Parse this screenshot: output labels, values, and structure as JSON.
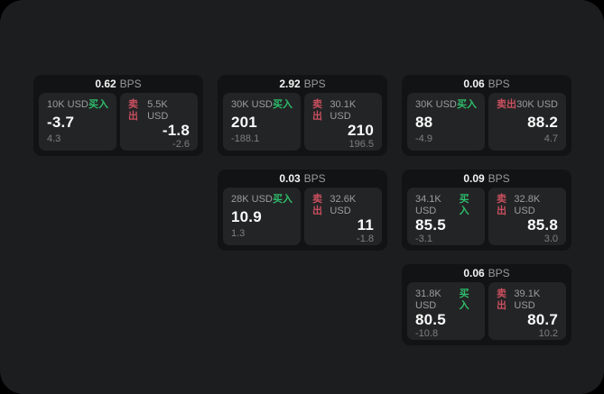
{
  "colors": {
    "page_bg": "#1c1d1e",
    "group_bg": "#121314",
    "subcard_bg": "#232425",
    "green": "#2ebd6b",
    "red": "#c94f5f"
  },
  "cards": [
    {
      "bps": "0.62",
      "unit": "BPS",
      "buy": {
        "amount": "10K USD",
        "side": "买入",
        "value": "-3.7",
        "sub": "4.3"
      },
      "sell": {
        "side": "卖出",
        "amount": "5.5K USD",
        "value": "-1.8",
        "sub": "-2.6"
      }
    },
    {
      "bps": "2.92",
      "unit": "BPS",
      "buy": {
        "amount": "30K USD",
        "side": "买入",
        "value": "201",
        "sub": "-188.1"
      },
      "sell": {
        "side": "卖出",
        "amount": "30.1K USD",
        "value": "210",
        "sub": "196.5"
      }
    },
    {
      "bps": "0.06",
      "unit": "BPS",
      "buy": {
        "amount": "30K USD",
        "side": "买入",
        "value": "88",
        "sub": "-4.9"
      },
      "sell": {
        "side": "卖出",
        "amount": "30K USD",
        "value": "88.2",
        "sub": "4.7"
      }
    },
    {
      "bps": "0.03",
      "unit": "BPS",
      "buy": {
        "amount": "28K USD",
        "side": "买入",
        "value": "10.9",
        "sub": "1.3"
      },
      "sell": {
        "side": "卖出",
        "amount": "32.6K USD",
        "value": "11",
        "sub": "-1.8"
      }
    },
    {
      "bps": "0.09",
      "unit": "BPS",
      "buy": {
        "amount": "34.1K USD",
        "side": "买入",
        "value": "85.5",
        "sub": "-3.1"
      },
      "sell": {
        "side": "卖出",
        "amount": "32.8K USD",
        "value": "85.8",
        "sub": "3.0"
      }
    },
    {
      "bps": "0.06",
      "unit": "BPS",
      "buy": {
        "amount": "31.8K USD",
        "side": "买入",
        "value": "80.5",
        "sub": "-10.8"
      },
      "sell": {
        "side": "卖出",
        "amount": "39.1K USD",
        "value": "80.7",
        "sub": "10.2"
      }
    }
  ]
}
